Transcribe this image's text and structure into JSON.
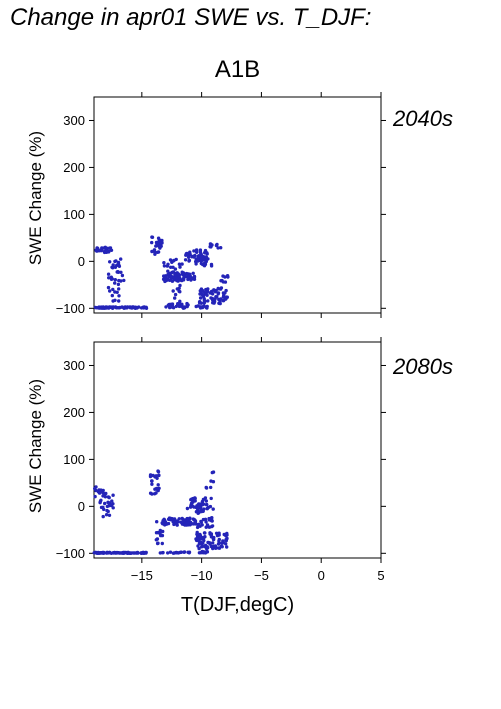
{
  "page": {
    "title": "Change in apr01 SWE vs. T_DJF:",
    "scenario": "A1B"
  },
  "colors": {
    "points": "#2424b8",
    "period_label": "#2424b8",
    "axes": "#000000"
  },
  "chart_data": [
    {
      "type": "scatter",
      "period_label": "2040s",
      "ylabel": "SWE Change (%)",
      "xlabel": "",
      "xlim": [
        -19,
        5
      ],
      "ylim": [
        -110,
        350
      ],
      "xticks": [
        -15,
        -10,
        -5,
        0,
        5
      ],
      "yticks": [
        -100,
        0,
        100,
        200,
        300
      ],
      "grid": false,
      "clusters": [
        {
          "x": [
            -19,
            -17.5
          ],
          "y": [
            18,
            30
          ],
          "n": 28
        },
        {
          "x": [
            -17.8,
            -16.5
          ],
          "y": [
            -85,
            5
          ],
          "n": 40
        },
        {
          "x": [
            -19,
            -14.5
          ],
          "y": [
            -100,
            -97
          ],
          "n": 70
        },
        {
          "x": [
            -14.2,
            -13.3
          ],
          "y": [
            15,
            52
          ],
          "n": 30
        },
        {
          "x": [
            -13.2,
            -11.5
          ],
          "y": [
            -45,
            5
          ],
          "n": 40
        },
        {
          "x": [
            -13,
            -10.5
          ],
          "y": [
            -40,
            -25
          ],
          "n": 60
        },
        {
          "x": [
            -13,
            -11
          ],
          "y": [
            -100,
            -90
          ],
          "n": 25
        },
        {
          "x": [
            -12.5,
            -11.8
          ],
          "y": [
            -90,
            -50
          ],
          "n": 10
        },
        {
          "x": [
            -11.5,
            -9.5
          ],
          "y": [
            0,
            25
          ],
          "n": 45
        },
        {
          "x": [
            -10.5,
            -9
          ],
          "y": [
            -10,
            10
          ],
          "n": 20
        },
        {
          "x": [
            -9.3,
            -8.3
          ],
          "y": [
            28,
            38
          ],
          "n": 10
        },
        {
          "x": [
            -10.2,
            -7.8
          ],
          "y": [
            -90,
            -55
          ],
          "n": 70
        },
        {
          "x": [
            -8.8,
            -7.8
          ],
          "y": [
            -45,
            -30
          ],
          "n": 8
        },
        {
          "x": [
            -10.5,
            -9.5
          ],
          "y": [
            -100,
            -95
          ],
          "n": 12
        }
      ]
    },
    {
      "type": "scatter",
      "period_label": "2080s",
      "ylabel": "SWE Change (%)",
      "xlabel": "T(DJF,degC)",
      "xlim": [
        -19,
        5
      ],
      "ylim": [
        -110,
        350
      ],
      "xticks": [
        -15,
        -10,
        -5,
        0,
        5
      ],
      "yticks": [
        -100,
        0,
        100,
        200,
        300
      ],
      "grid": false,
      "clusters": [
        {
          "x": [
            -19,
            -18.2
          ],
          "y": [
            20,
            42
          ],
          "n": 12
        },
        {
          "x": [
            -18.5,
            -17.3
          ],
          "y": [
            -22,
            32
          ],
          "n": 30
        },
        {
          "x": [
            -19,
            -14.5
          ],
          "y": [
            -100,
            -98
          ],
          "n": 90
        },
        {
          "x": [
            -14.3,
            -13.5
          ],
          "y": [
            25,
            78
          ],
          "n": 25
        },
        {
          "x": [
            -13.8,
            -13
          ],
          "y": [
            -80,
            -30
          ],
          "n": 15
        },
        {
          "x": [
            -13.5,
            -10.5
          ],
          "y": [
            -40,
            -25
          ],
          "n": 70
        },
        {
          "x": [
            -13.5,
            -11
          ],
          "y": [
            -100,
            -97
          ],
          "n": 20
        },
        {
          "x": [
            -11.2,
            -9.5
          ],
          "y": [
            -5,
            20
          ],
          "n": 30
        },
        {
          "x": [
            -10.5,
            -9
          ],
          "y": [
            -45,
            0
          ],
          "n": 40
        },
        {
          "x": [
            -10,
            -8.8
          ],
          "y": [
            10,
            75
          ],
          "n": 10
        },
        {
          "x": [
            -10.5,
            -7.8
          ],
          "y": [
            -90,
            -55
          ],
          "n": 80
        },
        {
          "x": [
            -10.2,
            -9.5
          ],
          "y": [
            -100,
            -96
          ],
          "n": 10
        }
      ]
    }
  ]
}
